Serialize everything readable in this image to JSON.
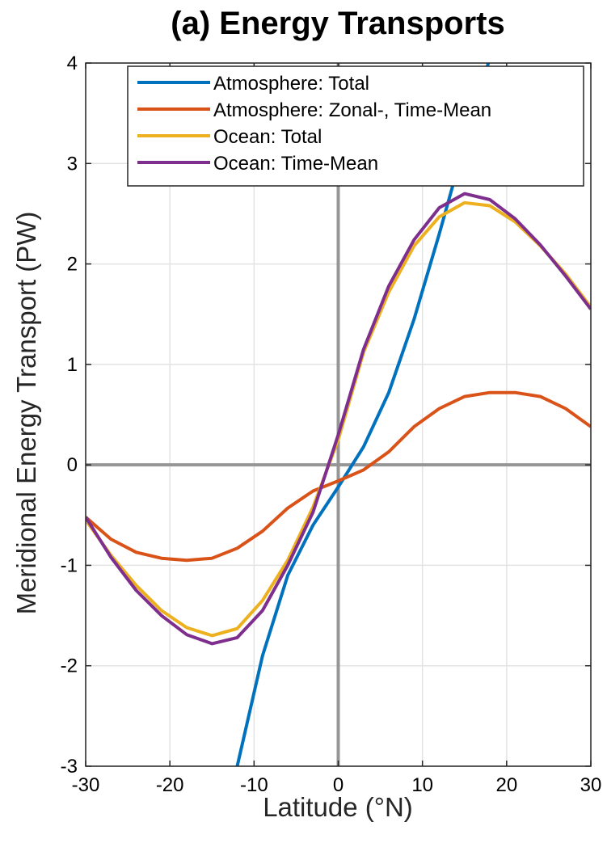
{
  "chart_data": {
    "type": "line",
    "title": "(a) Energy Transports",
    "xlabel": "Latitude (°N)",
    "ylabel": "Meridional Energy Transport (PW)",
    "xlim": [
      -30,
      30
    ],
    "ylim": [
      -3,
      4
    ],
    "xticks": [
      -30,
      -20,
      -10,
      0,
      10,
      20,
      30
    ],
    "xtick_labels": [
      "-30",
      "-20",
      "-10",
      "0",
      "10",
      "20",
      "30"
    ],
    "yticks": [
      -3,
      -2,
      -1,
      0,
      1,
      2,
      3,
      4
    ],
    "ytick_labels": [
      "-3",
      "-2",
      "-1",
      "0",
      "1",
      "2",
      "3",
      "4"
    ],
    "grid": true,
    "legend_position": "top-right",
    "zero_lines": true,
    "x": [
      -30,
      -27,
      -24,
      -21,
      -18,
      -15,
      -12,
      -9,
      -6,
      -3,
      0,
      3,
      6,
      9,
      12,
      15,
      18,
      21,
      24,
      27,
      30
    ],
    "series": [
      {
        "name": "Atmosphere: Total",
        "color": "#0072BD",
        "values": [
          null,
          null,
          null,
          null,
          null,
          null,
          -3.0,
          -1.9,
          -1.1,
          -0.6,
          -0.22,
          0.18,
          0.72,
          1.45,
          2.3,
          3.2,
          4.05,
          null,
          null,
          null,
          null
        ]
      },
      {
        "name": "Atmosphere: Zonal-, Time-Mean",
        "color": "#D95319",
        "values": [
          -0.52,
          -0.74,
          -0.87,
          -0.93,
          -0.95,
          -0.93,
          -0.83,
          -0.66,
          -0.43,
          -0.26,
          -0.16,
          -0.05,
          0.13,
          0.38,
          0.56,
          0.68,
          0.72,
          0.72,
          0.68,
          0.56,
          0.38
        ]
      },
      {
        "name": "Ocean: Total",
        "color": "#EDB120",
        "values": [
          -0.55,
          -0.9,
          -1.2,
          -1.45,
          -1.62,
          -1.7,
          -1.63,
          -1.35,
          -0.95,
          -0.42,
          0.25,
          1.12,
          1.72,
          2.18,
          2.47,
          2.61,
          2.58,
          2.42,
          2.18,
          1.9,
          1.57
        ]
      },
      {
        "name": "Ocean: Time-Mean",
        "color": "#7E2F8E",
        "values": [
          -0.52,
          -0.92,
          -1.25,
          -1.5,
          -1.69,
          -1.78,
          -1.72,
          -1.45,
          -1.0,
          -0.47,
          0.3,
          1.15,
          1.78,
          2.24,
          2.56,
          2.7,
          2.64,
          2.45,
          2.19,
          1.88,
          1.55
        ]
      }
    ]
  }
}
